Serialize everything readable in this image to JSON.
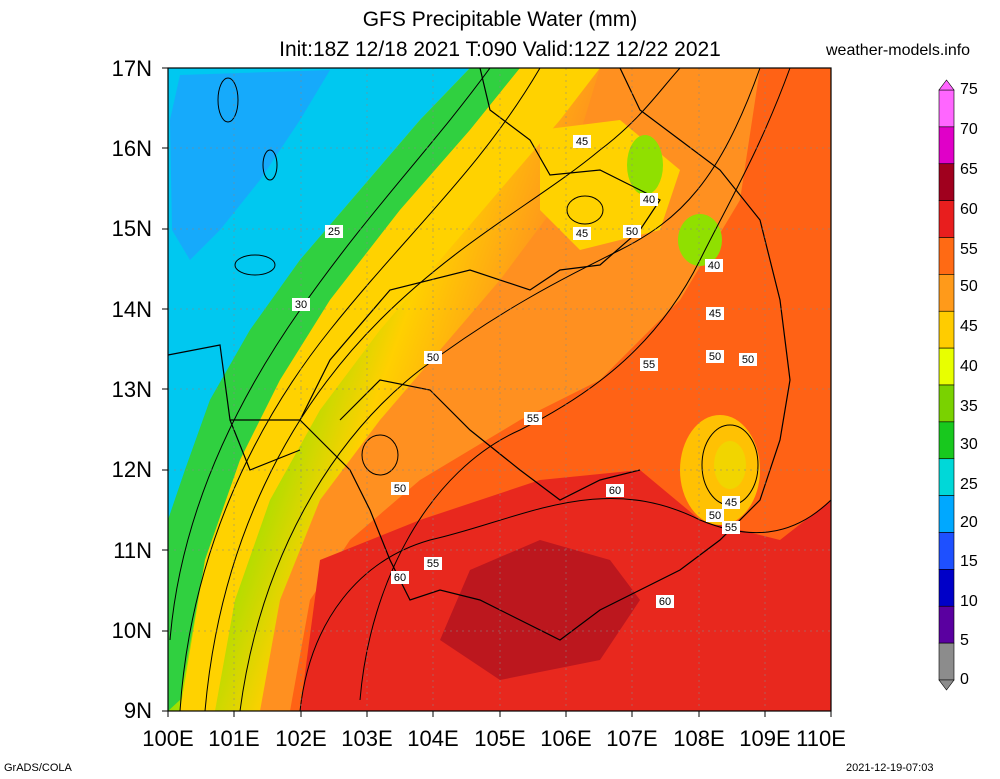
{
  "title": {
    "line1": "GFS Precipitable Water (mm)",
    "line2": "Init:18Z 12/18 2021 T:090 Valid:12Z 12/22 2021"
  },
  "site": "weather-models.info",
  "credit": "GrADS/COLA",
  "timestamp": "2021-12-19-07:03",
  "axes": {
    "lat_labels": [
      "17N",
      "16N",
      "15N",
      "14N",
      "13N",
      "12N",
      "11N",
      "10N",
      "9N"
    ],
    "lon_labels": [
      "100E",
      "101E",
      "102E",
      "103E",
      "104E",
      "105E",
      "106E",
      "107E",
      "108E",
      "109E",
      "110E"
    ]
  },
  "colorbar": {
    "labels": [
      "75",
      "70",
      "65",
      "60",
      "55",
      "50",
      "45",
      "40",
      "35",
      "30",
      "25",
      "20",
      "15",
      "10",
      "5",
      "0"
    ],
    "colors": [
      "#ff66ff",
      "#e000c8",
      "#a0001e",
      "#e81e1e",
      "#ff6a14",
      "#ff9a1a",
      "#ffcc00",
      "#e8ff00",
      "#7ad200",
      "#18c81e",
      "#00d8d8",
      "#00a8ff",
      "#1e50ff",
      "#0000c8",
      "#5a00a0",
      "#8c8c8c"
    ]
  },
  "contour_labels": [
    "25",
    "30",
    "40",
    "40",
    "45",
    "45",
    "45",
    "45",
    "50",
    "50",
    "50",
    "50",
    "50",
    "50",
    "55",
    "55",
    "55",
    "55",
    "60",
    "60",
    "60"
  ],
  "chart_data": {
    "type": "heatmap",
    "variable": "Precipitable Water (mm)",
    "lon_range": [
      100,
      110
    ],
    "lat_range": [
      9,
      17
    ],
    "scale_range": [
      0,
      75
    ],
    "contour_levels": [
      25,
      30,
      35,
      40,
      45,
      50,
      55,
      60
    ]
  }
}
